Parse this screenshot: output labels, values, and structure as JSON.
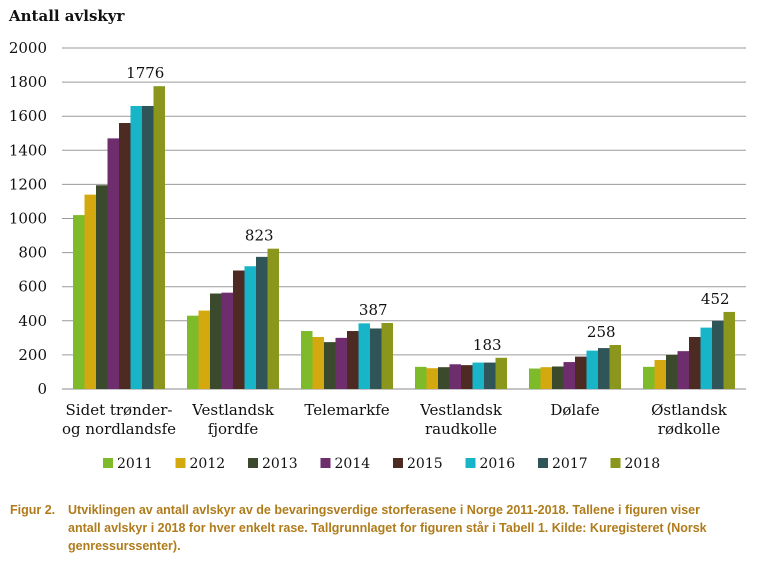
{
  "chart_data": {
    "type": "bar",
    "title": "",
    "ylabel": "Antall avlskyr",
    "xlabel": "",
    "ylim": [
      0,
      2000
    ],
    "yticks": [
      "0",
      "200",
      "400",
      "600",
      "800",
      "1000",
      "1200",
      "1400",
      "1600",
      "1800",
      "2000"
    ],
    "grid": true,
    "legend_position": "bottom",
    "categories": [
      [
        "Sidet trønder-",
        "og nordlandsfe"
      ],
      [
        "Vestlandsk",
        "fjordfe"
      ],
      [
        "Telemarkfe"
      ],
      [
        "Vestlandsk",
        "raudkolle"
      ],
      [
        "Dølafe"
      ],
      [
        "Østlandsk",
        "rødkolle"
      ]
    ],
    "series": [
      {
        "name": "2011",
        "color": "#7dbb2a",
        "values": [
          1020,
          430,
          340,
          130,
          120,
          130
        ]
      },
      {
        "name": "2012",
        "color": "#d4a80f",
        "values": [
          1140,
          460,
          305,
          122,
          128,
          170
        ]
      },
      {
        "name": "2013",
        "color": "#3b4a2c",
        "values": [
          1195,
          560,
          275,
          128,
          132,
          200
        ]
      },
      {
        "name": "2014",
        "color": "#6e2e6e",
        "values": [
          1470,
          565,
          300,
          145,
          158,
          222
        ]
      },
      {
        "name": "2015",
        "color": "#4d2a22",
        "values": [
          1560,
          695,
          340,
          140,
          190,
          305
        ]
      },
      {
        "name": "2016",
        "color": "#18b4c8",
        "values": [
          1660,
          720,
          385,
          155,
          225,
          360
        ]
      },
      {
        "name": "2017",
        "color": "#2f5558",
        "values": [
          1660,
          775,
          355,
          155,
          240,
          400
        ]
      },
      {
        "name": "2018",
        "color": "#8a961c",
        "values": [
          1776,
          823,
          387,
          183,
          258,
          452
        ]
      }
    ],
    "data_labels_2018": [
      "1776",
      "823",
      "387",
      "183",
      "258",
      "452"
    ]
  },
  "caption": {
    "figure_label": "Figur 2.",
    "line1": "Utviklingen av antall avlskyr av de bevaringsverdige storferasene i Norge 2011-2018. Tallene i figuren viser",
    "line2": "antall avlskyr i 2018 for hver enkelt rase. Tallgrunnlaget for figuren står i Tabell 1.  Kilde: Kuregisteret (Norsk",
    "line3": "genressurssenter)."
  }
}
